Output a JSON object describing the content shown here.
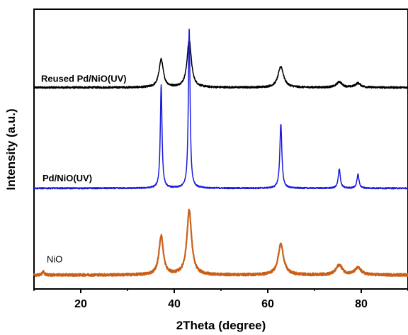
{
  "chart_data": {
    "type": "line",
    "title": "",
    "xlabel": "2Theta (degree)",
    "ylabel": "Intensity (a.u.)",
    "xlim": [
      10,
      90
    ],
    "x_ticks": [
      20,
      40,
      60,
      80
    ],
    "x_tick_labels": [
      "20",
      "40",
      "60",
      "80"
    ],
    "yticks_shown": false,
    "grid": false,
    "legend": "none (series labels placed beside curves)",
    "y_scale": "arbitrary units, stacked with offsets",
    "series": [
      {
        "name": "Reused Pd/NiO(UV)",
        "color": "#000000",
        "baseline": 0.72,
        "noise": 0.0035,
        "peaks": [
          {
            "x": 37.2,
            "height": 0.1,
            "width": 0.55
          },
          {
            "x": 43.2,
            "height": 0.17,
            "width": 0.55
          },
          {
            "x": 62.8,
            "height": 0.075,
            "width": 0.7
          },
          {
            "x": 75.3,
            "height": 0.02,
            "width": 0.7
          },
          {
            "x": 79.3,
            "height": 0.015,
            "width": 0.7
          }
        ]
      },
      {
        "name": "Pd/NiO(UV)",
        "color": "#1a1adc",
        "baseline": 0.36,
        "noise": 0.0025,
        "peaks": [
          {
            "x": 37.2,
            "height": 0.37,
            "width": 0.22
          },
          {
            "x": 43.2,
            "height": 0.57,
            "width": 0.22
          },
          {
            "x": 62.8,
            "height": 0.23,
            "width": 0.26
          },
          {
            "x": 75.3,
            "height": 0.07,
            "width": 0.26
          },
          {
            "x": 79.3,
            "height": 0.05,
            "width": 0.26
          }
        ]
      },
      {
        "name": "NiO",
        "color": "#c8601a",
        "baseline": 0.05,
        "noise": 0.0045,
        "peaks": [
          {
            "x": 12.0,
            "height": 0.012,
            "width": 0.25
          },
          {
            "x": 37.2,
            "height": 0.14,
            "width": 0.55
          },
          {
            "x": 43.2,
            "height": 0.23,
            "width": 0.6
          },
          {
            "x": 62.8,
            "height": 0.11,
            "width": 0.7
          },
          {
            "x": 75.3,
            "height": 0.035,
            "width": 0.8
          },
          {
            "x": 79.3,
            "height": 0.025,
            "width": 0.8
          }
        ]
      }
    ]
  }
}
